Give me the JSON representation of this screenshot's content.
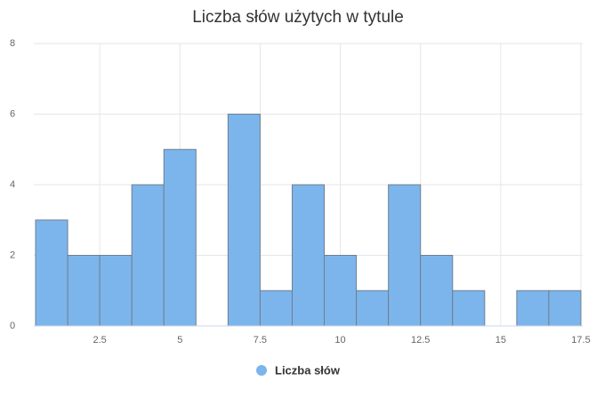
{
  "chart_data": {
    "type": "histogram",
    "title": "Liczba słów użytych w tytule",
    "bins": [
      0.5,
      1.5,
      2.5,
      3.5,
      4.5,
      5.5,
      6.5,
      7.5,
      8.5,
      9.5,
      10.5,
      11.5,
      12.5,
      13.5,
      14.5,
      15.5,
      16.5,
      17.5
    ],
    "series": [
      {
        "name": "Liczba słów",
        "color": "#7cb5ec",
        "values": [
          3,
          2,
          2,
          4,
          5,
          0,
          6,
          1,
          4,
          2,
          1,
          4,
          2,
          1,
          0,
          1,
          1
        ]
      }
    ],
    "xlim": [
      0.5,
      17.5
    ],
    "xticks": [
      2.5,
      5,
      7.5,
      10,
      12.5,
      15,
      17.5
    ],
    "ylim": [
      0,
      8
    ],
    "yticks": [
      0,
      2,
      4,
      6,
      8
    ],
    "grid": true,
    "legend": "bottom"
  }
}
